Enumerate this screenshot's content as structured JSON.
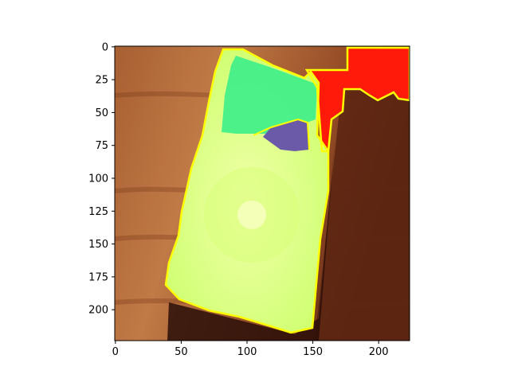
{
  "axes": {
    "x_ticks": [
      {
        "value": 0,
        "label": "0"
      },
      {
        "value": 50,
        "label": "50"
      },
      {
        "value": 100,
        "label": "100"
      },
      {
        "value": 150,
        "label": "150"
      },
      {
        "value": 200,
        "label": "200"
      }
    ],
    "y_ticks": [
      {
        "value": 0,
        "label": "0"
      },
      {
        "value": 25,
        "label": "25"
      },
      {
        "value": 50,
        "label": "50"
      },
      {
        "value": 75,
        "label": "75"
      },
      {
        "value": 100,
        "label": "100"
      },
      {
        "value": 125,
        "label": "125"
      },
      {
        "value": 150,
        "label": "150"
      },
      {
        "value": 175,
        "label": "175"
      },
      {
        "value": 200,
        "label": "200"
      }
    ],
    "xlim": [
      0,
      224
    ],
    "ylim": [
      224,
      0
    ],
    "y_inverted": true,
    "grid": false
  },
  "image": {
    "description_hidden": true,
    "colors": {
      "wood_light": "#b0683a",
      "wood_dark": "#6e3418",
      "device_body": "#e6ff88",
      "screen_green": "#3cf08a",
      "purple_patch": "#6a5aa8",
      "red_region": "#ff1a0a",
      "contour": "#ffff00",
      "shadow": "#2a0e08"
    }
  }
}
